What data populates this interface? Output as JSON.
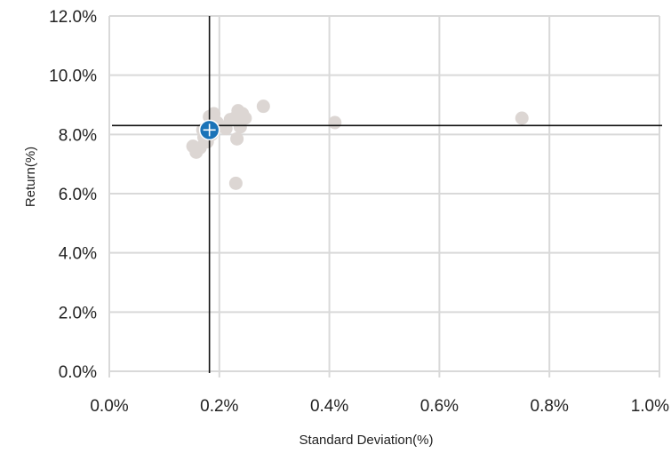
{
  "chart_data": {
    "type": "scatter",
    "title": "",
    "xlabel": "Standard Deviation(%)",
    "ylabel": "Return(%)",
    "xlim": [
      0.0,
      1.0
    ],
    "ylim": [
      0.0,
      12.0
    ],
    "x_ticks": [
      "0.0%",
      "0.2%",
      "0.4%",
      "0.6%",
      "0.8%",
      "1.0%"
    ],
    "y_ticks": [
      "0.0%",
      "2.0%",
      "4.0%",
      "6.0%",
      "8.0%",
      "10.0%",
      "12.0%"
    ],
    "grid": true,
    "colors": {
      "points": "#dcd6d3",
      "highlight": "#1a73b8",
      "crosshair": "#111111",
      "grid": "#d9d9d9"
    },
    "series": [
      {
        "values": [
          {
            "x": 0.152,
            "y": 7.6
          },
          {
            "x": 0.158,
            "y": 7.4
          },
          {
            "x": 0.165,
            "y": 7.55
          },
          {
            "x": 0.17,
            "y": 8.15
          },
          {
            "x": 0.172,
            "y": 7.9
          },
          {
            "x": 0.178,
            "y": 7.75
          },
          {
            "x": 0.182,
            "y": 8.6
          },
          {
            "x": 0.186,
            "y": 8.0
          },
          {
            "x": 0.19,
            "y": 8.7
          },
          {
            "x": 0.196,
            "y": 8.4
          },
          {
            "x": 0.2,
            "y": 8.3
          },
          {
            "x": 0.212,
            "y": 8.2
          },
          {
            "x": 0.22,
            "y": 8.5
          },
          {
            "x": 0.228,
            "y": 8.55
          },
          {
            "x": 0.232,
            "y": 7.85
          },
          {
            "x": 0.234,
            "y": 8.8
          },
          {
            "x": 0.238,
            "y": 8.25
          },
          {
            "x": 0.242,
            "y": 8.7
          },
          {
            "x": 0.247,
            "y": 8.55
          },
          {
            "x": 0.23,
            "y": 6.35
          },
          {
            "x": 0.28,
            "y": 8.95
          },
          {
            "x": 0.41,
            "y": 8.4
          },
          {
            "x": 0.75,
            "y": 8.55
          }
        ]
      },
      {
        "values": [
          {
            "x": 0.182,
            "y": 8.15
          }
        ]
      }
    ],
    "crosshair": {
      "x": 0.182,
      "y": 8.3
    }
  }
}
